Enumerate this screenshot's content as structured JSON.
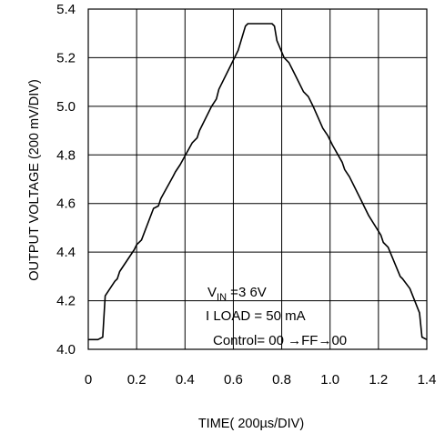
{
  "chart_data": {
    "type": "line",
    "xlabel": "TIME( 200µs/DIV)",
    "ylabel": "OUTPUT VOLTAGE (200 mV/DIV)",
    "xlim": [
      0,
      1.4
    ],
    "ylim": [
      4.0,
      5.4
    ],
    "x_ticks": [
      "0",
      "0.2",
      "0.4",
      "0.6",
      "0.8",
      "1.0",
      "1.2",
      "1.4"
    ],
    "y_ticks": [
      "4.0",
      "4.2",
      "4.4",
      "4.6",
      "4.8",
      "5.0",
      "5.2",
      "5.4"
    ],
    "grid": true,
    "line_color": "#000000",
    "series": [
      {
        "x": [
          0,
          0.04,
          0.06,
          0.07,
          0.11,
          0.12,
          0.13,
          0.19,
          0.2,
          0.22,
          0.27,
          0.29,
          0.3,
          0.35,
          0.36,
          0.38,
          0.43,
          0.45,
          0.46,
          0.51,
          0.53,
          0.54,
          0.59,
          0.6,
          0.62,
          0.65,
          0.66,
          0.76,
          0.77,
          0.78,
          0.81,
          0.83,
          0.85,
          0.89,
          0.91,
          0.93,
          0.97,
          0.99,
          1.01,
          1.05,
          1.06,
          1.08,
          1.13,
          1.14,
          1.16,
          1.21,
          1.22,
          1.24,
          1.29,
          1.3,
          1.33,
          1.37,
          1.38,
          1.4
        ],
        "y": [
          4.04,
          4.04,
          4.05,
          4.22,
          4.28,
          4.29,
          4.32,
          4.41,
          4.43,
          4.45,
          4.58,
          4.59,
          4.62,
          4.71,
          4.73,
          4.76,
          4.85,
          4.87,
          4.9,
          5.0,
          5.03,
          5.07,
          5.17,
          5.19,
          5.23,
          5.33,
          5.34,
          5.34,
          5.33,
          5.27,
          5.2,
          5.18,
          5.14,
          5.06,
          5.04,
          5.0,
          4.91,
          4.88,
          4.84,
          4.77,
          4.74,
          4.71,
          4.61,
          4.59,
          4.55,
          4.47,
          4.44,
          4.42,
          4.3,
          4.29,
          4.25,
          4.15,
          4.05,
          4.04
        ]
      }
    ],
    "annotations": {
      "vin_main": "V",
      "vin_sub": "IN",
      "vin_rest": " =3 6V",
      "iload": "I LOAD = 50 mA",
      "control": "Control= 00 →FF→00"
    }
  }
}
